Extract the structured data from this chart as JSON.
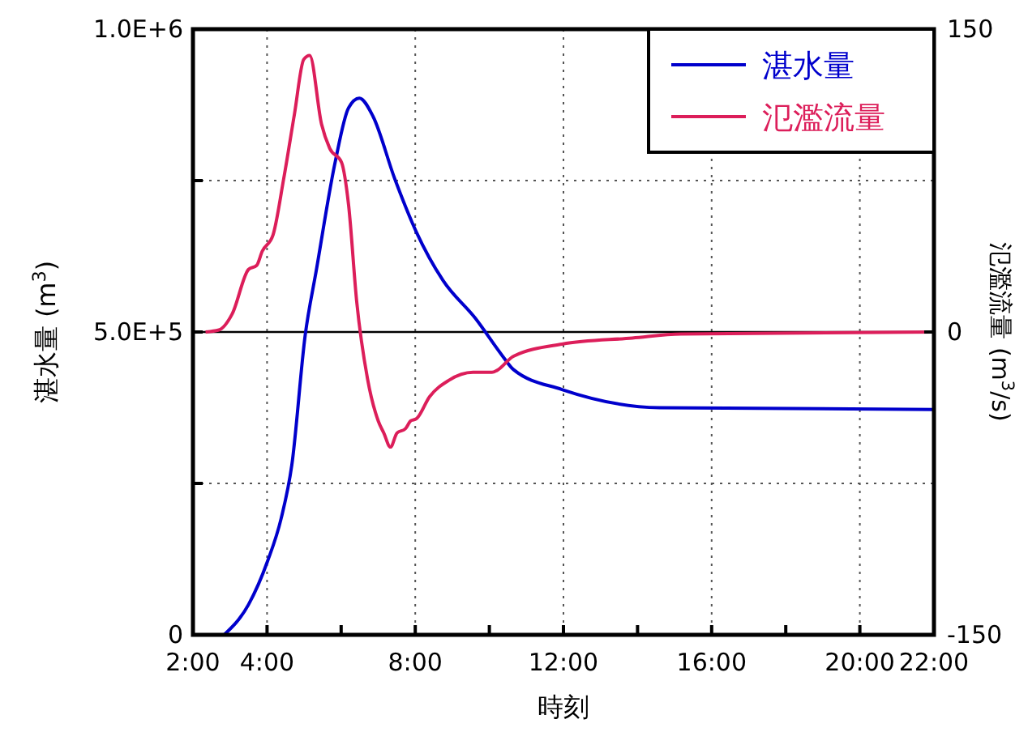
{
  "chart_data": {
    "type": "line",
    "xlabel": "時刻",
    "ylabel": "湛水量 (m$^{3}$)",
    "y2label": "氾濫流量 (m$^{3}$/s)",
    "xlim": [
      2,
      22
    ],
    "xticks": [
      {
        "value": 2,
        "label": "2:00"
      },
      {
        "value": 4,
        "label": "4:00"
      },
      {
        "value": 6,
        "label": null
      },
      {
        "value": 8,
        "label": "8:00"
      },
      {
        "value": 10,
        "label": null
      },
      {
        "value": 12,
        "label": "12:00"
      },
      {
        "value": 14,
        "label": null
      },
      {
        "value": 16,
        "label": "16:00"
      },
      {
        "value": 18,
        "label": null
      },
      {
        "value": 20,
        "label": "20:00"
      },
      {
        "value": 22,
        "label": "22:00"
      }
    ],
    "ylim": [
      0,
      1000000
    ],
    "yticks": [
      0,
      {
        "value": 250000,
        "label": null
      },
      {
        "value": 500000,
        "label": "5.0E+5"
      },
      {
        "value": 750000,
        "label": null
      },
      {
        "value": 1000000,
        "label": "1.0E+6"
      }
    ],
    "y2lim": [
      -150,
      150
    ],
    "y2ticks": [
      -150,
      0,
      150
    ],
    "grid": true,
    "legend": "top right",
    "line_style": "solid",
    "marker": "none",
    "ref_lines": [
      {
        "axis": "y2",
        "value": 0,
        "color": "#000000"
      }
    ],
    "series": [
      {
        "name": "湛水量",
        "color": "#0000cc",
        "x": [
          2.84,
          3.5,
          4.01,
          4.38,
          4.67,
          5.03,
          5.33,
          5.84,
          6.2,
          6.49,
          6.86,
          7.44,
          8.03,
          8.75,
          9.63,
          10.36,
          10.65,
          11.96,
          14.59,
          22
        ],
        "values": [
          0,
          50000,
          121000,
          192000,
          281000,
          495000,
          602000,
          781000,
          870000,
          886000,
          856000,
          754000,
          665000,
          585000,
          522000,
          460000,
          438000,
          405000,
          375000,
          372000
        ]
      },
      {
        "name": "氾濫流量",
        "color": "#dc1e5a",
        "axis": "y2",
        "x": [
          2.34,
          2.7,
          3.06,
          3.5,
          3.72,
          3.87,
          4.16,
          4.45,
          4.74,
          4.99,
          5.15,
          5.47,
          5.69,
          6.01,
          6.2,
          6.42,
          6.71,
          7.0,
          7.15,
          7.33,
          7.51,
          7.73,
          7.88,
          8.03,
          8.39,
          8.9,
          9.56,
          10.07,
          10.21,
          10.65,
          11.96,
          13.86,
          15.17,
          22
        ],
        "values": [
          0,
          1,
          9,
          31,
          33,
          40,
          48,
          76,
          108,
          135,
          137,
          103,
          91,
          84,
          63,
          15,
          -23,
          -44,
          -50,
          -57,
          -50,
          -48,
          -44,
          -43,
          -32,
          -24,
          -20,
          -20,
          -19,
          -12,
          -6,
          -3,
          -1,
          0
        ]
      }
    ]
  }
}
